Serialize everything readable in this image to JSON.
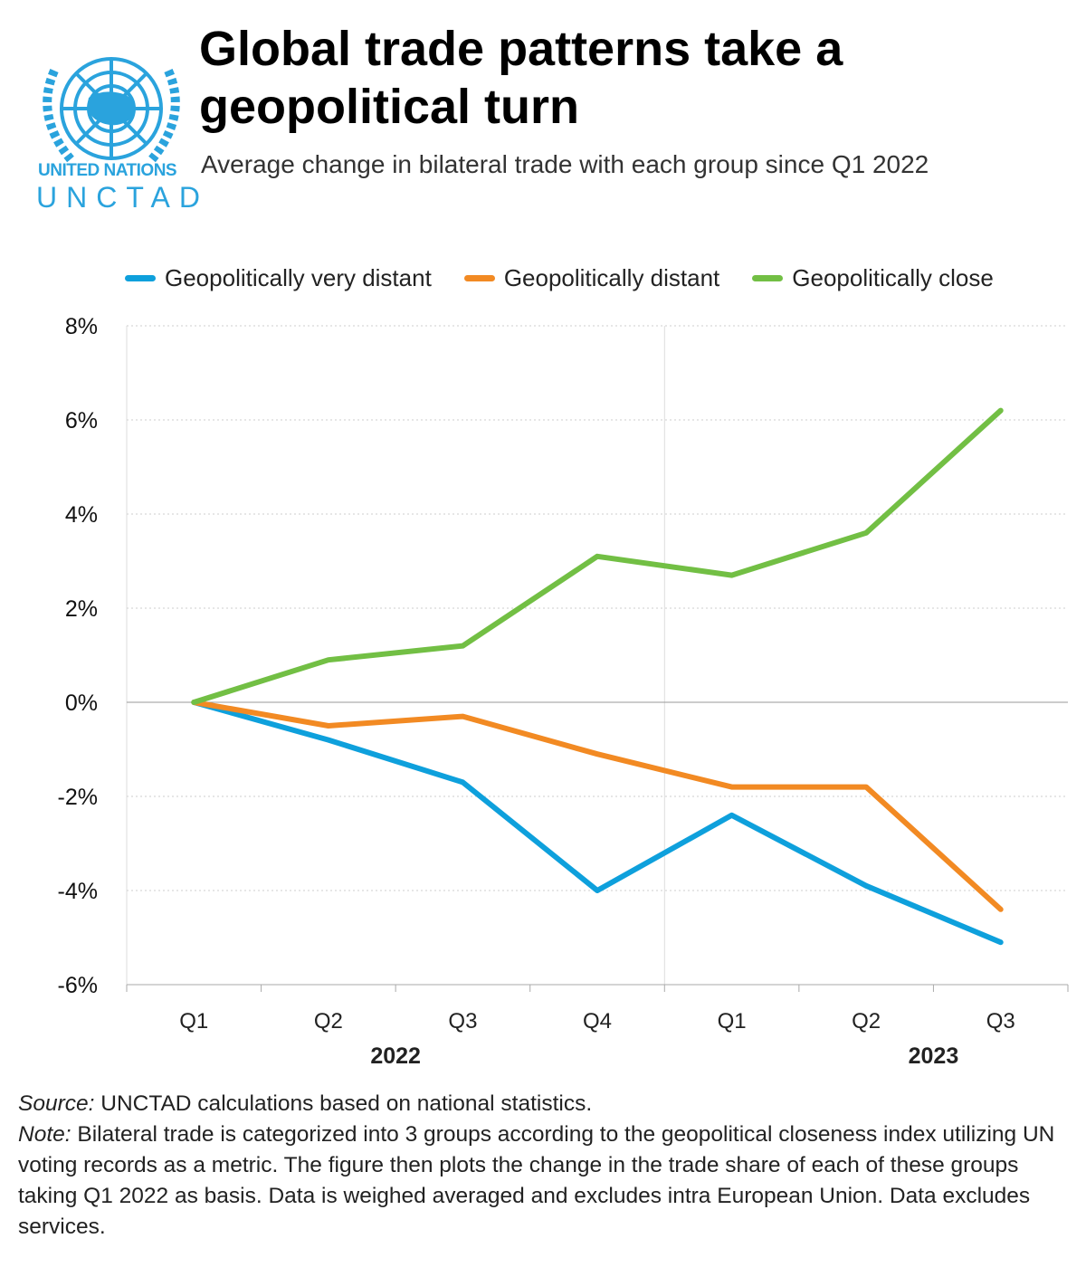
{
  "logo": {
    "line1": "UNITED NATIONS",
    "line2": "UNCTAD",
    "color": "#2aa3dd"
  },
  "title": "Global trade patterns take a geopolitical turn",
  "subtitle": "Average change in bilateral trade with each group since Q1 2022",
  "chart_data": {
    "type": "line",
    "categories": [
      "Q1",
      "Q2",
      "Q3",
      "Q4",
      "Q1",
      "Q2",
      "Q3"
    ],
    "year_labels": [
      "2022",
      "2023"
    ],
    "yticks": [
      "8%",
      "6%",
      "4%",
      "2%",
      "0%",
      "-2%",
      "-4%",
      "-6%"
    ],
    "ylim": [
      -6,
      8
    ],
    "grid": true,
    "legend_position": "top",
    "series": [
      {
        "name": "Geopolitically very distant",
        "color": "#0ea0dc",
        "values": [
          0,
          -0.8,
          -1.7,
          -4.0,
          -2.4,
          -3.9,
          -5.1
        ]
      },
      {
        "name": "Geopolitically distant",
        "color": "#f28a23",
        "values": [
          0,
          -0.5,
          -0.3,
          -1.1,
          -1.8,
          -1.8,
          -4.4
        ]
      },
      {
        "name": "Geopolitically close",
        "color": "#72bf44",
        "values": [
          0,
          0.9,
          1.2,
          3.1,
          2.7,
          3.6,
          6.2
        ]
      }
    ]
  },
  "notes": {
    "source_label": "Source:",
    "source_text": " UNCTAD calculations based on national statistics.",
    "note_label": "Note:",
    "note_text": " Bilateral trade is categorized into 3 groups according to the geopolitical closeness index utilizing UN voting records as a metric. The figure then plots the change in the trade share of each of these groups taking Q1 2022 as basis. Data is weighed averaged and excludes intra European Union. Data excludes services."
  }
}
